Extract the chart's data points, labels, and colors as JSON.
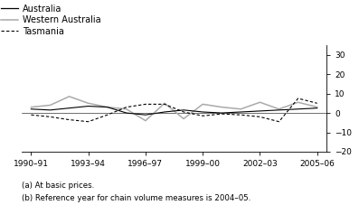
{
  "ylabel_right": "%",
  "ylim": [
    -20,
    35
  ],
  "yticks": [
    -20,
    -10,
    0,
    10,
    20,
    30
  ],
  "footnote1": "(a) At basic prices.",
  "footnote2": "(b) Reference year for chain volume measures is 2004–05.",
  "x_labels": [
    "1990–91",
    "1993–94",
    "1996–97",
    "1999–00",
    "2002–03",
    "2005–06"
  ],
  "x_positions": [
    0,
    3,
    6,
    9,
    12,
    15
  ],
  "australia": [
    2.0,
    1.5,
    2.5,
    3.5,
    3.0,
    0.0,
    -1.0,
    0.5,
    1.5,
    0.5,
    0.0,
    0.5,
    1.0,
    1.5,
    2.0,
    2.5
  ],
  "western_australia": [
    3.0,
    4.0,
    8.5,
    5.0,
    3.0,
    2.0,
    -4.0,
    5.0,
    -3.0,
    4.5,
    3.0,
    2.0,
    5.5,
    2.0,
    5.5,
    3.0
  ],
  "tasmania": [
    -1.0,
    -2.0,
    -3.5,
    -4.5,
    -1.0,
    3.0,
    4.5,
    4.5,
    0.5,
    -1.5,
    -0.5,
    -1.0,
    -2.0,
    -4.5,
    7.5,
    5.0
  ],
  "australia_color": "#000000",
  "wa_color": "#aaaaaa",
  "tasmania_color": "#000000",
  "bg_color": "#ffffff",
  "legend_labels": [
    "Australia",
    "Western Australia",
    "Tasmania"
  ],
  "legend_styles": [
    "solid",
    "solid",
    "dashed"
  ]
}
